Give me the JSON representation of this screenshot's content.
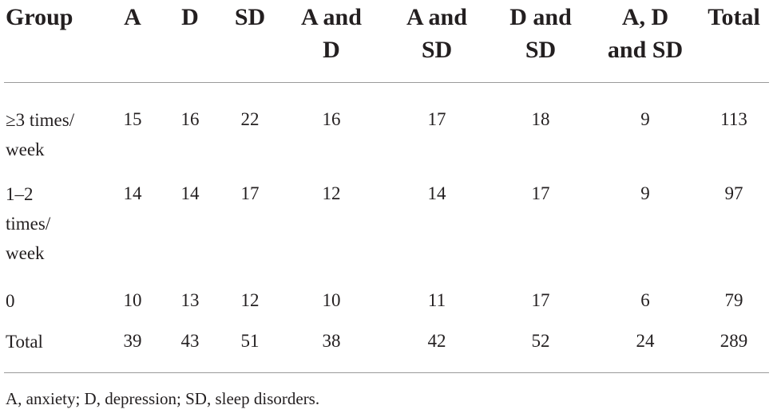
{
  "table": {
    "headers": [
      {
        "lines": [
          "Group"
        ]
      },
      {
        "lines": [
          "A"
        ]
      },
      {
        "lines": [
          "D"
        ]
      },
      {
        "lines": [
          "SD"
        ]
      },
      {
        "lines": [
          "A and",
          "D"
        ]
      },
      {
        "lines": [
          "A and",
          "SD"
        ]
      },
      {
        "lines": [
          "D and",
          "SD"
        ]
      },
      {
        "lines": [
          "A, D",
          "and SD"
        ]
      },
      {
        "lines": [
          "Total"
        ]
      }
    ],
    "rows": [
      {
        "label_lines": [
          "≥3 times/",
          "week"
        ],
        "cells": [
          "15",
          "16",
          "22",
          "16",
          "17",
          "18",
          "9",
          "113"
        ]
      },
      {
        "label_lines": [
          "1–2",
          "times/",
          "week"
        ],
        "cells": [
          "14",
          "14",
          "17",
          "12",
          "14",
          "17",
          "9",
          "97"
        ]
      },
      {
        "label_lines": [
          "0"
        ],
        "cells": [
          "10",
          "13",
          "12",
          "10",
          "11",
          "17",
          "6",
          "79"
        ]
      },
      {
        "label_lines": [
          "Total"
        ],
        "cells": [
          "39",
          "43",
          "51",
          "38",
          "42",
          "52",
          "24",
          "289"
        ]
      }
    ]
  },
  "footnote": "A, anxiety; D, depression; SD, sleep disorders."
}
